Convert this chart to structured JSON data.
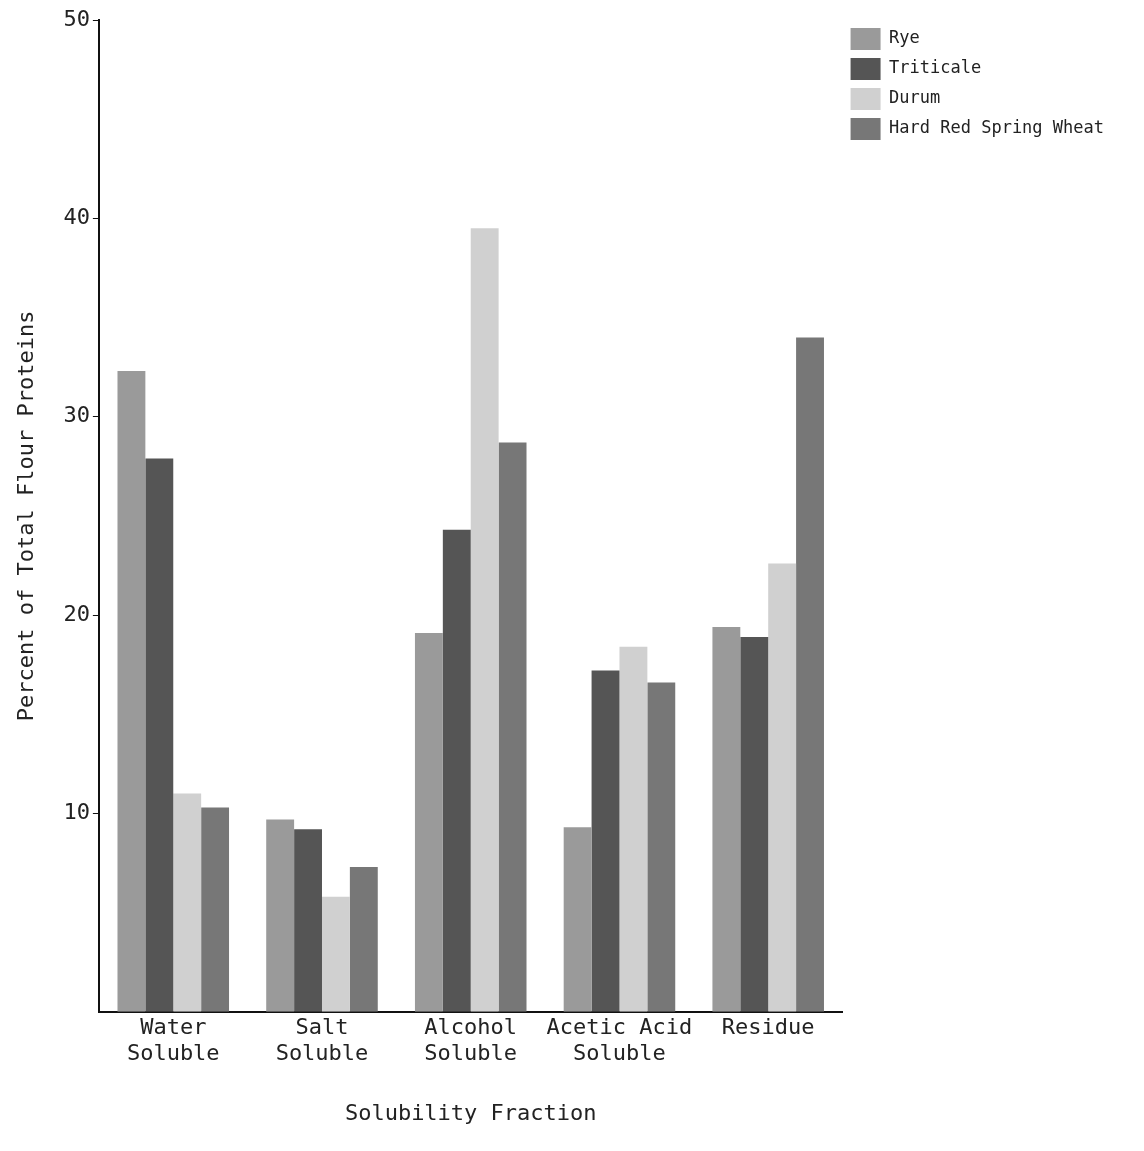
{
  "chart_data": {
    "type": "bar",
    "xlabel": "Solubility Fraction",
    "ylabel": "Percent of Total Flour Proteins",
    "categories": [
      "Water Soluble",
      "Salt Soluble",
      "Alcohol Soluble",
      "Acetic Acid Soluble",
      "Residue"
    ],
    "series": [
      {
        "name": "Rye",
        "color": "#9a9a9a",
        "values": [
          32.3,
          9.7,
          19.1,
          9.3,
          19.4
        ]
      },
      {
        "name": "Triticale",
        "color": "#555555",
        "values": [
          27.9,
          9.2,
          24.3,
          17.2,
          18.9
        ]
      },
      {
        "name": "Durum",
        "color": "#d0d0d0",
        "values": [
          11.0,
          5.8,
          39.5,
          18.4,
          22.6
        ]
      },
      {
        "name": "Hard Red Spring Wheat",
        "color": "#777777",
        "values": [
          10.3,
          7.3,
          28.7,
          16.6,
          34.0
        ]
      }
    ],
    "ylim": [
      0,
      50
    ],
    "yticks": [
      10,
      20,
      30,
      40,
      50
    ],
    "grid": false,
    "legend": "top right"
  }
}
